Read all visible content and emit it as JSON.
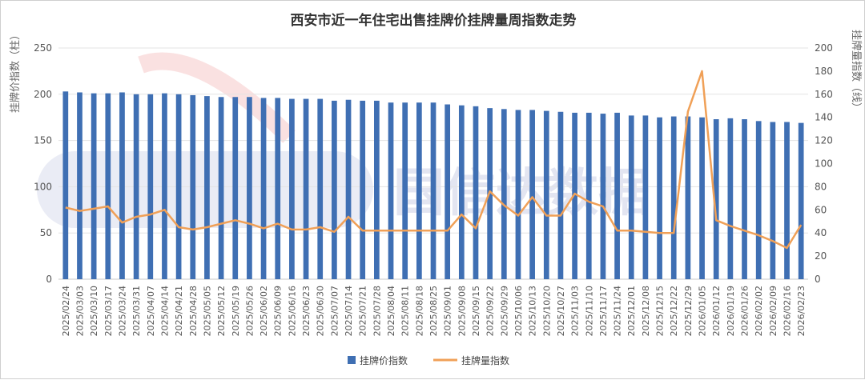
{
  "chart_data": {
    "type": "bar+line",
    "title": "西安市近一年住宅出售挂牌价挂牌量周指数走势",
    "ylabel_left": "挂牌价指数（柱）",
    "ylabel_right": "挂牌量指数（线）",
    "ylim_left": [
      0,
      250
    ],
    "ylim_right": [
      0,
      200
    ],
    "yticks_left": [
      0,
      50,
      100,
      150,
      200,
      250
    ],
    "yticks_right": [
      0,
      20,
      40,
      60,
      80,
      100,
      120,
      140,
      160,
      180,
      200
    ],
    "grid": true,
    "legend_position": "bottom",
    "colors": {
      "bar": "#3f6fb3",
      "line": "#f0a057"
    },
    "categories": [
      "2025/02/24",
      "2025/03/03",
      "2025/03/10",
      "2025/03/17",
      "2025/03/24",
      "2025/03/31",
      "2025/04/07",
      "2025/04/14",
      "2025/04/21",
      "2025/04/28",
      "2025/05/05",
      "2025/05/12",
      "2025/05/19",
      "2025/05/26",
      "2025/06/02",
      "2025/06/09",
      "2025/06/16",
      "2025/06/23",
      "2025/06/30",
      "2025/07/07",
      "2025/07/14",
      "2025/07/21",
      "2025/07/28",
      "2025/08/04",
      "2025/08/11",
      "2025/08/18",
      "2025/08/25",
      "2025/09/01",
      "2025/09/08",
      "2025/09/15",
      "2025/09/22",
      "2025/09/29",
      "2025/10/06",
      "2025/10/13",
      "2025/10/20",
      "2025/10/27",
      "2025/11/03",
      "2025/11/10",
      "2025/11/17",
      "2025/11/24",
      "2025/12/01",
      "2025/12/08",
      "2025/12/15",
      "2025/12/22",
      "2025/12/29",
      "2026/01/05",
      "2026/01/12",
      "2026/01/19",
      "2026/01/26",
      "2026/02/02",
      "2026/02/09",
      "2026/02/16",
      "2026/02/23"
    ],
    "series": [
      {
        "name": "挂牌价指数",
        "type": "bar",
        "axis": "left",
        "values": [
          203,
          202,
          201,
          201,
          202,
          200,
          200,
          201,
          200,
          199,
          198,
          197,
          197,
          197,
          196,
          196,
          195,
          195,
          195,
          193,
          194,
          193,
          193,
          191,
          191,
          191,
          191,
          189,
          188,
          187,
          185,
          184,
          183,
          183,
          182,
          181,
          180,
          180,
          179,
          180,
          177,
          177,
          175,
          176,
          176,
          175,
          173,
          174,
          173,
          171,
          170,
          170,
          169
        ]
      },
      {
        "name": "挂牌量指数",
        "type": "line",
        "axis": "right",
        "values": [
          62,
          59,
          61,
          63,
          49,
          54,
          56,
          60,
          45,
          43,
          45,
          48,
          51,
          48,
          44,
          48,
          43,
          43,
          45,
          41,
          54,
          42,
          42,
          42,
          42,
          42,
          42,
          42,
          56,
          44,
          76,
          64,
          55,
          71,
          55,
          55,
          74,
          67,
          63,
          42,
          42,
          41,
          40,
          40,
          145,
          180,
          51,
          46,
          42,
          38,
          33,
          27,
          47
        ]
      }
    ]
  },
  "watermark": {
    "text": "国信达数据"
  }
}
